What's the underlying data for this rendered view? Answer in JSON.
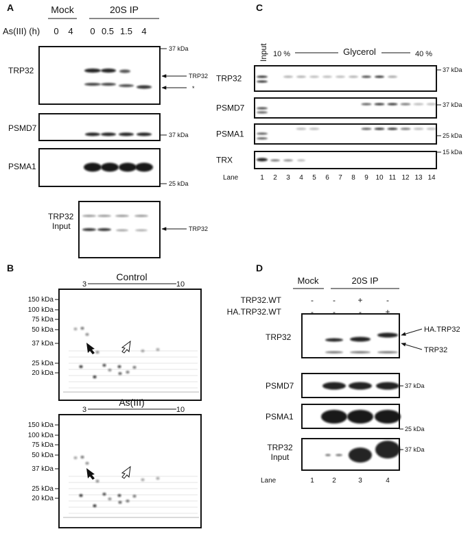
{
  "panel_a": {
    "label": "A",
    "groups": [
      "Mock",
      "20S IP"
    ],
    "row_label": "As(III) (h)",
    "lanes": [
      "0",
      "4",
      "0",
      "0.5",
      "1.5",
      "4"
    ],
    "blots": [
      {
        "name": "TRP32",
        "marker": "37 kDa",
        "arrows": [
          "TRP32",
          "*"
        ]
      },
      {
        "name": "PSMD7",
        "marker": "37 kDa"
      },
      {
        "name": "PSMA1",
        "marker": "25 kDa"
      }
    ],
    "input_blot": {
      "name_lines": [
        "TRP32",
        "Input"
      ],
      "arrow": "TRP32"
    }
  },
  "panel_b": {
    "label": "B",
    "range_start": "3",
    "range_end": "10",
    "gels": [
      {
        "title": "Control"
      },
      {
        "title": "As(III)"
      }
    ],
    "markers": [
      "150 kDa",
      "100 kDa",
      "75 kDa",
      "50 kDa",
      "37 kDa",
      "25 kDa",
      "20 kDa"
    ]
  },
  "panel_c": {
    "label": "C",
    "input": "Input",
    "gradient_start": "10 %",
    "gradient_label": "Glycerol",
    "gradient_end": "40 %",
    "blots": [
      {
        "name": "TRP32",
        "marker": "37 kDa"
      },
      {
        "name": "PSMD7",
        "marker": "37 kDa"
      },
      {
        "name": "PSMA1",
        "marker": "25 kDa"
      },
      {
        "name": "TRX",
        "marker": "15 kDa"
      }
    ],
    "lane_label": "Lane",
    "lanes": [
      "1",
      "2",
      "3",
      "4",
      "5",
      "6",
      "7",
      "8",
      "9",
      "10",
      "11",
      "12",
      "13",
      "14"
    ]
  },
  "panel_d": {
    "label": "D",
    "groups": [
      "Mock",
      "20S IP"
    ],
    "conditions": [
      {
        "name": "TRP32.WT",
        "signs": [
          "-",
          "-",
          "+",
          "-"
        ]
      },
      {
        "name": "HA.TRP32.WT",
        "signs": [
          "-",
          "-",
          "-",
          "+"
        ]
      }
    ],
    "blots": [
      {
        "name": "TRP32",
        "arrows": [
          "HA.TRP32",
          "TRP32"
        ]
      },
      {
        "name": "PSMD7",
        "marker": "37 kDa"
      },
      {
        "name": "PSMA1",
        "marker": "25 kDa"
      }
    ],
    "input_blot": {
      "name_lines": [
        "TRP32",
        "Input"
      ],
      "marker": "37 kDa"
    },
    "lane_label": "Lane",
    "lanes": [
      "1",
      "2",
      "3",
      "4"
    ]
  }
}
